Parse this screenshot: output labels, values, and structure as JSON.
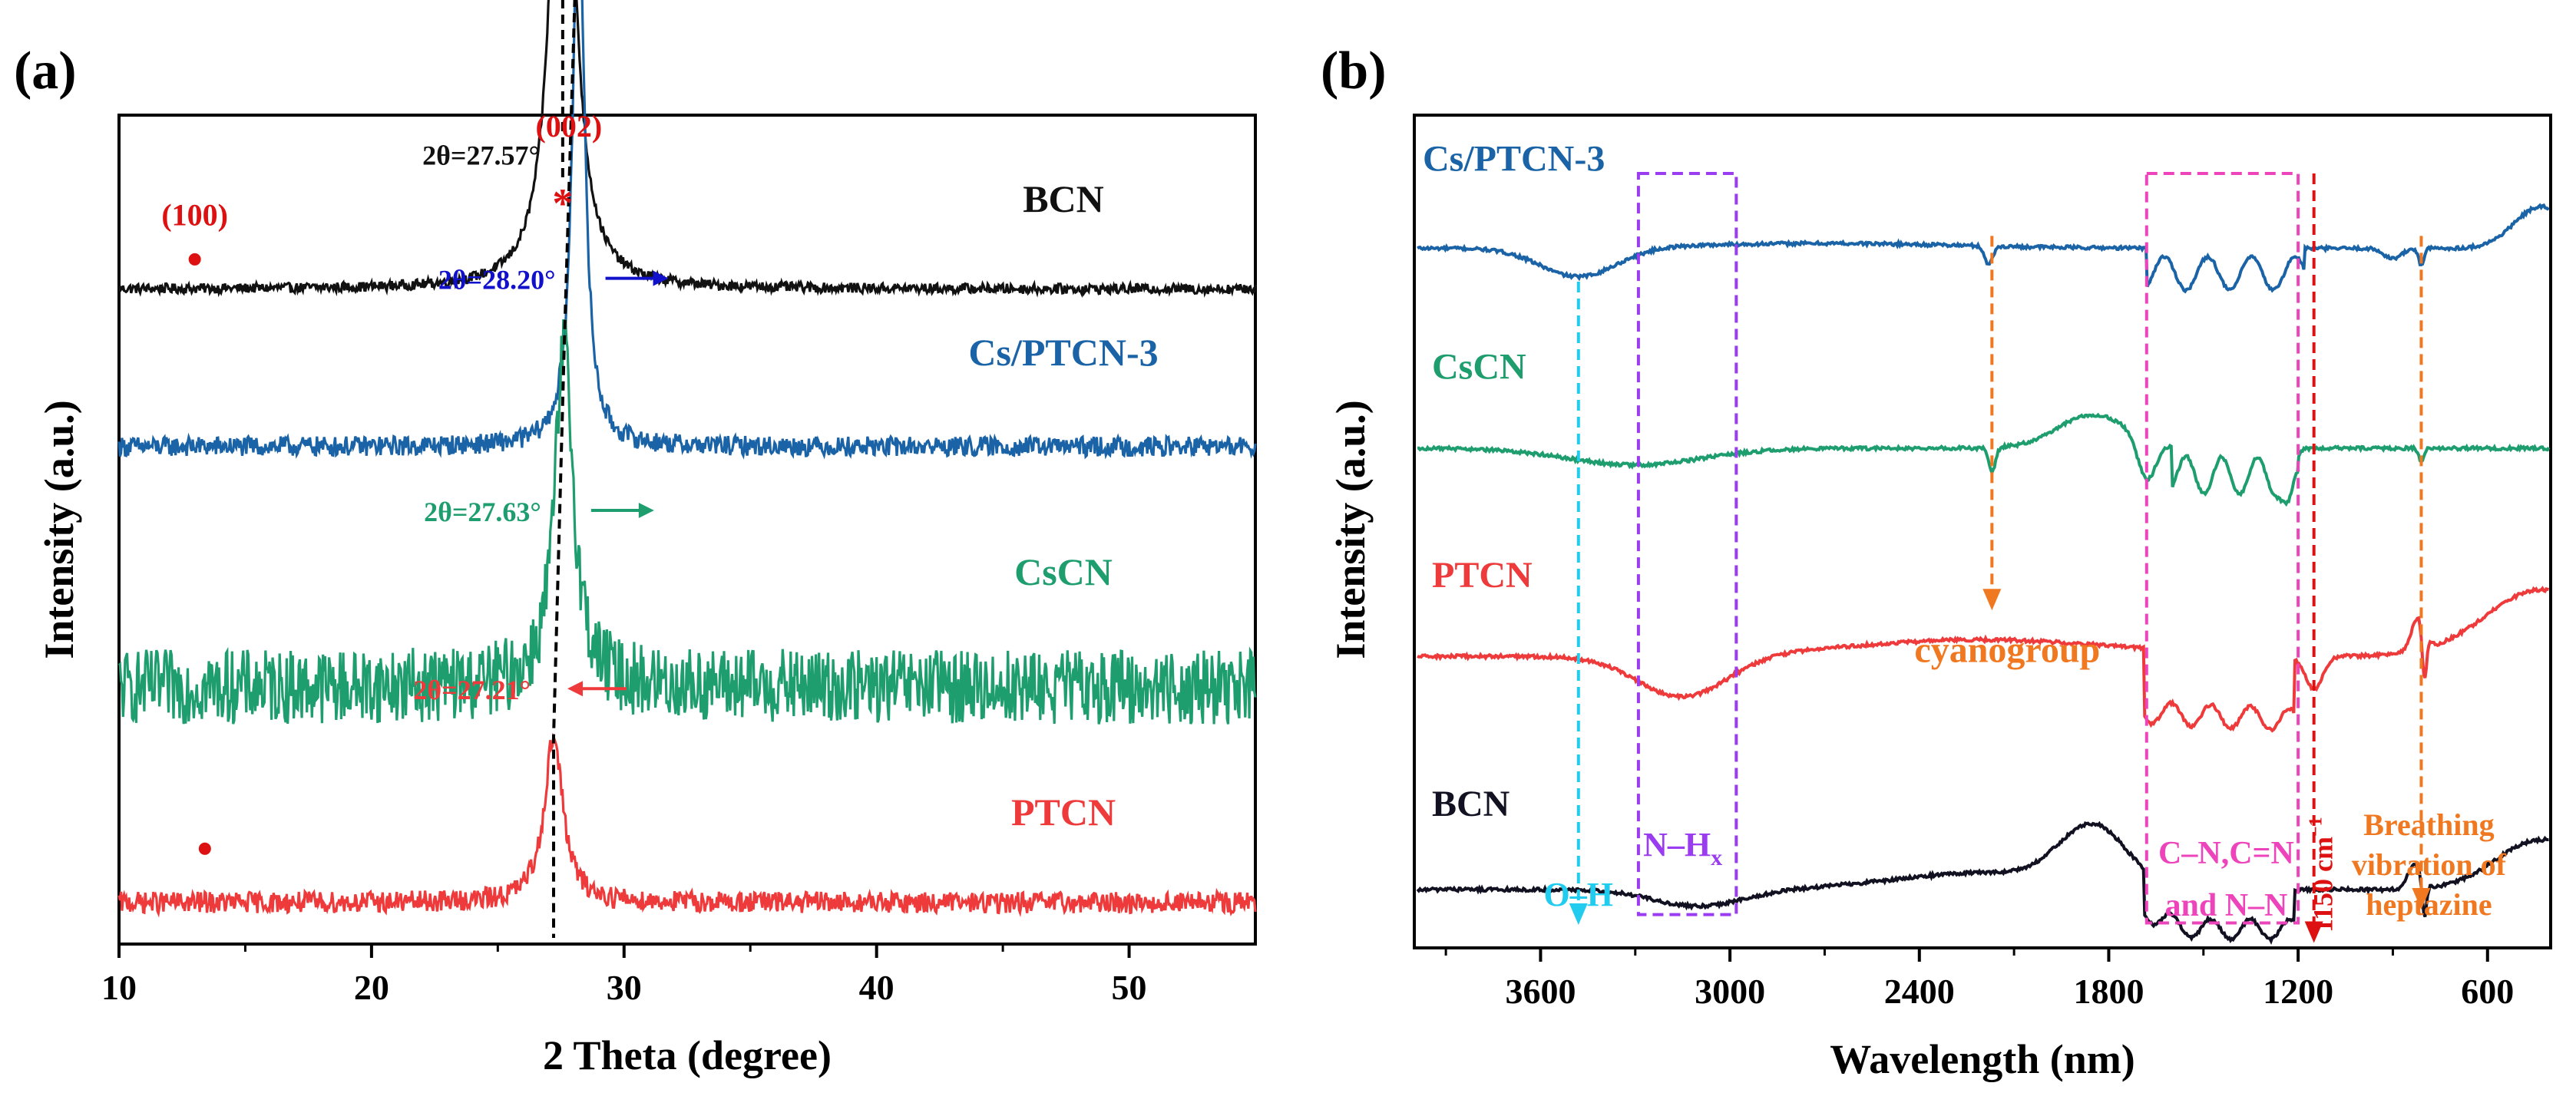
{
  "chart_data": [
    {
      "type": "line",
      "panel_label": "(a)",
      "xlabel": "2 Theta (degree)",
      "ylabel": "Intensity (a.u.)",
      "xlim": [
        10,
        55
      ],
      "x_ticks": [
        10,
        20,
        30,
        40,
        50
      ],
      "x_tick_labels": [
        "10",
        "20",
        "30",
        "40",
        "50"
      ],
      "y_ticks_shown": false,
      "grid": false,
      "legend": "none",
      "series": [
        {
          "name": "BCN",
          "color": "#111111",
          "peak_label": "2θ=27.57°",
          "peak_label_color": "#111111",
          "peak_x": 27.57,
          "peak_height": 0.78,
          "peak_width": 0.5,
          "offset": 0.79,
          "noise": 0.006,
          "shift_arrow": "none"
        },
        {
          "name": "Cs/PTCN-3",
          "color": "#1a63a6",
          "peak_label": "2θ=28.20°",
          "peak_label_color": "#1111cc",
          "peak_x": 28.2,
          "peak_height": 0.69,
          "peak_width": 0.28,
          "offset": 0.6,
          "noise": 0.012,
          "shift_arrow": "right"
        },
        {
          "name": "CsCN",
          "color": "#1e9e6e",
          "peak_label": "2θ=27.63°",
          "peak_label_color": "#1e9e6e",
          "peak_x": 27.63,
          "peak_height": 0.41,
          "peak_width": 0.45,
          "offset": 0.31,
          "noise": 0.045,
          "shift_arrow": "right"
        },
        {
          "name": "PTCN",
          "color": "#ee3a3a",
          "peak_label": "2θ=27.21°",
          "peak_label_color": "#ee3a3a",
          "peak_x": 27.21,
          "peak_height": 0.2,
          "peak_width": 0.45,
          "offset": 0.05,
          "noise": 0.013,
          "shift_arrow": "left"
        }
      ],
      "annotations": [
        {
          "text": "(002)",
          "marker": "*",
          "x": 27.57,
          "color": "#dd1111"
        },
        {
          "text": "(100)",
          "marker": "dot",
          "x": 13.0,
          "color": "#dd1111"
        }
      ],
      "extra_markers": [
        {
          "marker": "dot",
          "x": 13.4,
          "series": "PTCN",
          "color": "#dd1111"
        }
      ]
    },
    {
      "type": "line",
      "panel_label": "(b)",
      "xlabel": "Wavelength (nm)",
      "ylabel": "Intensity (a.u.)",
      "xlim": [
        4000,
        400
      ],
      "x_ticks": [
        3600,
        3000,
        2400,
        1800,
        1200,
        600
      ],
      "x_tick_labels": [
        "3600",
        "3000",
        "2400",
        "1800",
        "1200",
        "600"
      ],
      "y_ticks_shown": false,
      "grid": false,
      "legend": "none",
      "series": [
        {
          "name": "Cs/PTCN-3",
          "color": "#1a63a6",
          "offset": 0.84
        },
        {
          "name": "CsCN",
          "color": "#1e9e6e",
          "offset": 0.6
        },
        {
          "name": "PTCN",
          "color": "#ee3a3a",
          "offset": 0.35
        },
        {
          "name": "BCN",
          "color": "#111122",
          "offset": 0.07
        }
      ],
      "annotations": [
        {
          "text": "O–H",
          "x": 3480,
          "color": "#22ccee",
          "style": "dashed-arrow-down"
        },
        {
          "text": "N–H",
          "subscript": "x",
          "x_range": [
            3290,
            2980
          ],
          "color": "#9a3cf0",
          "style": "dashed-box"
        },
        {
          "text": "cyanogroup",
          "x": 2170,
          "color": "#f07820",
          "style": "dashed-arrow-down"
        },
        {
          "text": "C–N,C=N",
          "text2": "and N–N",
          "x_range": [
            1680,
            1200
          ],
          "color": "#ee44bb",
          "style": "dashed-box"
        },
        {
          "text": "1150 cm",
          "superscript": "−1",
          "x": 1150,
          "color": "#dd1111",
          "style": "dashed-arrow-down"
        },
        {
          "text": "Breathing",
          "text2": "vibration of",
          "text3": "heptazine",
          "x": 810,
          "color": "#f07820",
          "style": "dashed-arrow-down"
        }
      ]
    }
  ]
}
